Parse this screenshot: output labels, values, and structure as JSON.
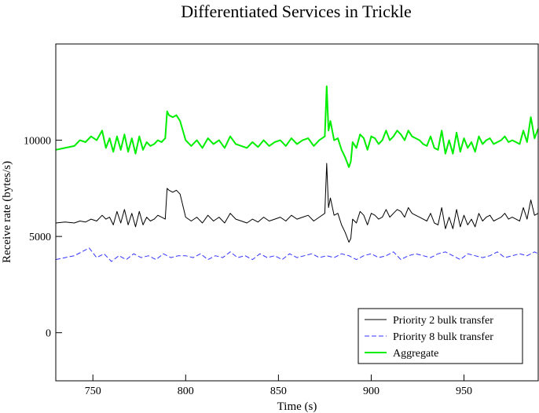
{
  "chart_data": {
    "type": "line",
    "title": "Differentiated Services in Trickle",
    "xlabel": "Time (s)",
    "ylabel": "Receive rate (bytes/s)",
    "xlim": [
      730,
      990
    ],
    "ylim": [
      -2500,
      15000
    ],
    "xticks": [
      750,
      800,
      850,
      900,
      950
    ],
    "yticks": [
      0,
      5000,
      10000
    ],
    "grid": false,
    "legend_position": "bottom-right",
    "series": [
      {
        "name": "Priority 2 bulk transfer",
        "color": "#000000",
        "dash": "solid",
        "x": [
          730,
          735,
          740,
          743,
          746,
          749,
          752,
          755,
          757,
          759,
          761,
          763,
          765,
          767,
          769,
          771,
          773,
          775,
          777,
          779,
          781,
          783,
          785,
          787,
          789,
          790,
          791,
          793,
          795,
          797,
          800,
          803,
          806,
          809,
          812,
          815,
          818,
          821,
          824,
          827,
          830,
          833,
          836,
          839,
          842,
          845,
          848,
          851,
          854,
          857,
          860,
          863,
          866,
          869,
          872,
          875,
          876,
          877,
          878,
          880,
          882,
          884,
          886,
          888,
          889,
          890,
          892,
          894,
          896,
          898,
          900,
          902,
          904,
          906,
          908,
          910,
          912,
          914,
          916,
          918,
          920,
          922,
          924,
          926,
          928,
          930,
          932,
          934,
          936,
          938,
          940,
          942,
          944,
          946,
          948,
          950,
          952,
          954,
          956,
          958,
          960,
          962,
          964,
          966,
          968,
          970,
          972,
          974,
          976,
          978,
          980,
          982,
          984,
          986,
          988,
          990
        ],
        "values": [
          5700,
          5750,
          5700,
          5800,
          5750,
          5900,
          5800,
          6100,
          5900,
          6000,
          5600,
          6300,
          5700,
          6400,
          5600,
          6200,
          5500,
          6300,
          5600,
          6000,
          5800,
          5900,
          6100,
          6000,
          5900,
          7500,
          7400,
          7300,
          7400,
          7200,
          6000,
          5800,
          6000,
          5700,
          6100,
          5800,
          6000,
          5700,
          6200,
          5900,
          5800,
          5700,
          5900,
          5750,
          6000,
          5800,
          5900,
          6000,
          5800,
          6100,
          5900,
          6000,
          6100,
          5800,
          6000,
          6200,
          8800,
          6500,
          7000,
          6100,
          6200,
          5600,
          5200,
          4700,
          4900,
          5900,
          5700,
          6300,
          6100,
          5600,
          6200,
          6100,
          5900,
          6000,
          6400,
          6000,
          6200,
          6400,
          6300,
          6000,
          6500,
          6200,
          6100,
          6000,
          5900,
          5800,
          6200,
          5700,
          5600,
          6500,
          5400,
          6000,
          5400,
          6400,
          5500,
          6100,
          5600,
          5900,
          5500,
          6200,
          5800,
          6000,
          6100,
          5800,
          5900,
          6000,
          6200,
          5900,
          6000,
          5900,
          5800,
          6500,
          5900,
          6900,
          6100,
          6200
        ]
      },
      {
        "name": "Priority 8 bulk transfer",
        "color": "#3333ff",
        "dash": "dashed",
        "x": [
          730,
          735,
          740,
          744,
          748,
          752,
          756,
          760,
          764,
          768,
          772,
          776,
          780,
          784,
          788,
          792,
          796,
          800,
          804,
          808,
          812,
          816,
          820,
          824,
          828,
          832,
          836,
          840,
          844,
          848,
          852,
          856,
          860,
          864,
          868,
          872,
          876,
          880,
          884,
          888,
          892,
          896,
          900,
          904,
          908,
          912,
          916,
          920,
          924,
          928,
          932,
          936,
          940,
          944,
          948,
          952,
          956,
          960,
          964,
          968,
          972,
          976,
          980,
          984,
          988,
          990
        ],
        "values": [
          3800,
          3900,
          4000,
          4200,
          4400,
          3900,
          4100,
          3700,
          4000,
          3800,
          4100,
          3900,
          4000,
          3800,
          4100,
          3900,
          4000,
          4000,
          3900,
          4100,
          3800,
          4000,
          3900,
          4200,
          3900,
          4000,
          3800,
          4100,
          3900,
          4000,
          3800,
          4100,
          3900,
          4000,
          4100,
          3900,
          4000,
          3900,
          4100,
          4000,
          3800,
          4000,
          4100,
          3900,
          4000,
          4200,
          3800,
          4000,
          4100,
          4000,
          3900,
          4100,
          4200,
          4000,
          3800,
          4100,
          4000,
          3900,
          4000,
          4200,
          3900,
          4000,
          4100,
          4000,
          4200,
          4100
        ]
      },
      {
        "name": "Aggregate",
        "color": "#00ee00",
        "dash": "solid",
        "x": [
          730,
          735,
          740,
          743,
          746,
          749,
          752,
          755,
          757,
          759,
          761,
          763,
          765,
          767,
          769,
          771,
          773,
          775,
          777,
          779,
          781,
          783,
          785,
          787,
          789,
          790,
          791,
          793,
          795,
          797,
          800,
          803,
          806,
          809,
          812,
          815,
          818,
          821,
          824,
          827,
          830,
          833,
          836,
          839,
          842,
          845,
          848,
          851,
          854,
          857,
          860,
          863,
          866,
          869,
          872,
          875,
          876,
          877,
          878,
          880,
          882,
          884,
          886,
          888,
          889,
          890,
          892,
          894,
          896,
          898,
          900,
          902,
          904,
          906,
          908,
          910,
          912,
          914,
          916,
          918,
          920,
          922,
          924,
          926,
          928,
          930,
          932,
          934,
          936,
          938,
          940,
          942,
          944,
          946,
          948,
          950,
          952,
          954,
          956,
          958,
          960,
          962,
          964,
          966,
          968,
          970,
          972,
          974,
          976,
          978,
          980,
          982,
          984,
          986,
          988,
          990
        ],
        "values": [
          9500,
          9600,
          9700,
          10000,
          9900,
          10200,
          10000,
          10500,
          9600,
          10100,
          9400,
          10200,
          9500,
          10300,
          9400,
          10100,
          9300,
          10200,
          9500,
          9900,
          9700,
          9800,
          10000,
          9900,
          10100,
          11500,
          11300,
          11200,
          11300,
          11000,
          10000,
          9700,
          10000,
          9600,
          10100,
          9800,
          10000,
          9600,
          10200,
          9800,
          9700,
          9600,
          9900,
          9650,
          10000,
          9700,
          9900,
          10000,
          9700,
          10100,
          9800,
          10000,
          10100,
          9700,
          10000,
          10200,
          12800,
          10500,
          11000,
          10000,
          10100,
          9500,
          9100,
          8600,
          8900,
          9900,
          9600,
          10300,
          10100,
          9500,
          10200,
          10100,
          9800,
          10000,
          10500,
          10000,
          10200,
          10500,
          10300,
          10000,
          10500,
          10200,
          10100,
          10000,
          9800,
          9700,
          10200,
          9600,
          9500,
          10500,
          9300,
          10000,
          9300,
          10400,
          9400,
          10100,
          9600,
          9900,
          9400,
          10200,
          9800,
          10000,
          10100,
          9800,
          9900,
          10000,
          10200,
          9900,
          10000,
          9900,
          9800,
          10500,
          9900,
          11200,
          10100,
          10600
        ]
      }
    ]
  }
}
